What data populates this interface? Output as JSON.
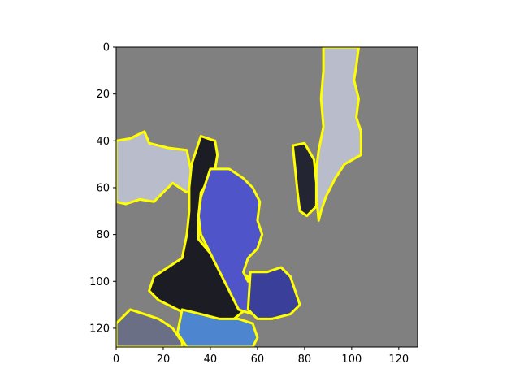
{
  "chart_data": {
    "type": "heatmap",
    "title": "",
    "xlabel": "",
    "ylabel": "",
    "xlim": [
      0,
      128
    ],
    "ylim": [
      128,
      0
    ],
    "x_ticks": [
      0,
      20,
      40,
      60,
      80,
      100,
      120
    ],
    "y_ticks": [
      0,
      20,
      40,
      60,
      80,
      100,
      120
    ],
    "grid": false,
    "legend": "none",
    "background_color": "#808080",
    "outline_color": "#ffff00",
    "regions": [
      {
        "id": "left-strip",
        "fill": "#b8bccb",
        "points": [
          [
            0,
            40
          ],
          [
            6,
            39
          ],
          [
            12,
            36
          ],
          [
            14,
            41
          ],
          [
            22,
            43
          ],
          [
            30,
            44
          ],
          [
            32,
            54
          ],
          [
            34,
            60
          ],
          [
            30,
            62
          ],
          [
            24,
            58
          ],
          [
            20,
            62
          ],
          [
            16,
            66
          ],
          [
            10,
            65
          ],
          [
            4,
            67
          ],
          [
            0,
            66
          ]
        ]
      },
      {
        "id": "right-strip",
        "fill": "#b8bccb",
        "points": [
          [
            88,
            0
          ],
          [
            103,
            0
          ],
          [
            102,
            8
          ],
          [
            101,
            14
          ],
          [
            103,
            22
          ],
          [
            102,
            30
          ],
          [
            104,
            36
          ],
          [
            104,
            46
          ],
          [
            97,
            50
          ],
          [
            93,
            56
          ],
          [
            89,
            64
          ],
          [
            87,
            70
          ],
          [
            86,
            74
          ],
          [
            85,
            64
          ],
          [
            85,
            52
          ],
          [
            86,
            44
          ],
          [
            88,
            34
          ],
          [
            87,
            22
          ],
          [
            88,
            10
          ]
        ]
      },
      {
        "id": "dark-patch",
        "fill": "#232632",
        "points": [
          [
            75,
            42
          ],
          [
            80,
            41
          ],
          [
            84,
            48
          ],
          [
            85,
            58
          ],
          [
            85,
            68
          ],
          [
            81,
            72
          ],
          [
            78,
            70
          ],
          [
            77,
            62
          ],
          [
            76,
            52
          ]
        ]
      },
      {
        "id": "hair",
        "fill": "#1b1c24",
        "points": [
          [
            36,
            38
          ],
          [
            42,
            40
          ],
          [
            43,
            46
          ],
          [
            42,
            52
          ],
          [
            40,
            56
          ],
          [
            36,
            62
          ],
          [
            35,
            72
          ],
          [
            35,
            82
          ],
          [
            40,
            88
          ],
          [
            48,
            94
          ],
          [
            56,
            98
          ],
          [
            58,
            104
          ],
          [
            55,
            112
          ],
          [
            50,
            116
          ],
          [
            42,
            118
          ],
          [
            34,
            116
          ],
          [
            26,
            112
          ],
          [
            18,
            108
          ],
          [
            14,
            104
          ],
          [
            16,
            98
          ],
          [
            22,
            94
          ],
          [
            28,
            90
          ],
          [
            30,
            80
          ],
          [
            31,
            70
          ],
          [
            31,
            60
          ],
          [
            32,
            50
          ]
        ]
      },
      {
        "id": "face",
        "fill": "#4f55c9",
        "points": [
          [
            40,
            52
          ],
          [
            48,
            52
          ],
          [
            54,
            56
          ],
          [
            58,
            60
          ],
          [
            61,
            66
          ],
          [
            60,
            74
          ],
          [
            62,
            80
          ],
          [
            60,
            86
          ],
          [
            56,
            90
          ],
          [
            54,
            96
          ],
          [
            56,
            100
          ],
          [
            62,
            102
          ],
          [
            68,
            100
          ],
          [
            72,
            98
          ],
          [
            74,
            102
          ],
          [
            73,
            108
          ],
          [
            66,
            112
          ],
          [
            58,
            114
          ],
          [
            52,
            112
          ],
          [
            48,
            104
          ],
          [
            44,
            96
          ],
          [
            40,
            88
          ],
          [
            36,
            80
          ],
          [
            35,
            72
          ],
          [
            36,
            64
          ]
        ]
      },
      {
        "id": "hand",
        "fill": "#3a3f9a",
        "points": [
          [
            57,
            96
          ],
          [
            64,
            96
          ],
          [
            70,
            94
          ],
          [
            74,
            98
          ],
          [
            76,
            104
          ],
          [
            78,
            110
          ],
          [
            74,
            114
          ],
          [
            66,
            116
          ],
          [
            60,
            116
          ],
          [
            56,
            112
          ]
        ]
      },
      {
        "id": "shirt",
        "fill": "#4d86cf",
        "points": [
          [
            28,
            112
          ],
          [
            36,
            114
          ],
          [
            44,
            116
          ],
          [
            52,
            116
          ],
          [
            58,
            118
          ],
          [
            60,
            124
          ],
          [
            58,
            128
          ],
          [
            30,
            128
          ],
          [
            26,
            122
          ]
        ]
      },
      {
        "id": "bottom-left-fragments",
        "fill": "#6a6f86",
        "points": [
          [
            0,
            118
          ],
          [
            6,
            112
          ],
          [
            12,
            114
          ],
          [
            18,
            116
          ],
          [
            24,
            120
          ],
          [
            28,
            126
          ],
          [
            28,
            128
          ],
          [
            0,
            128
          ]
        ]
      }
    ]
  }
}
